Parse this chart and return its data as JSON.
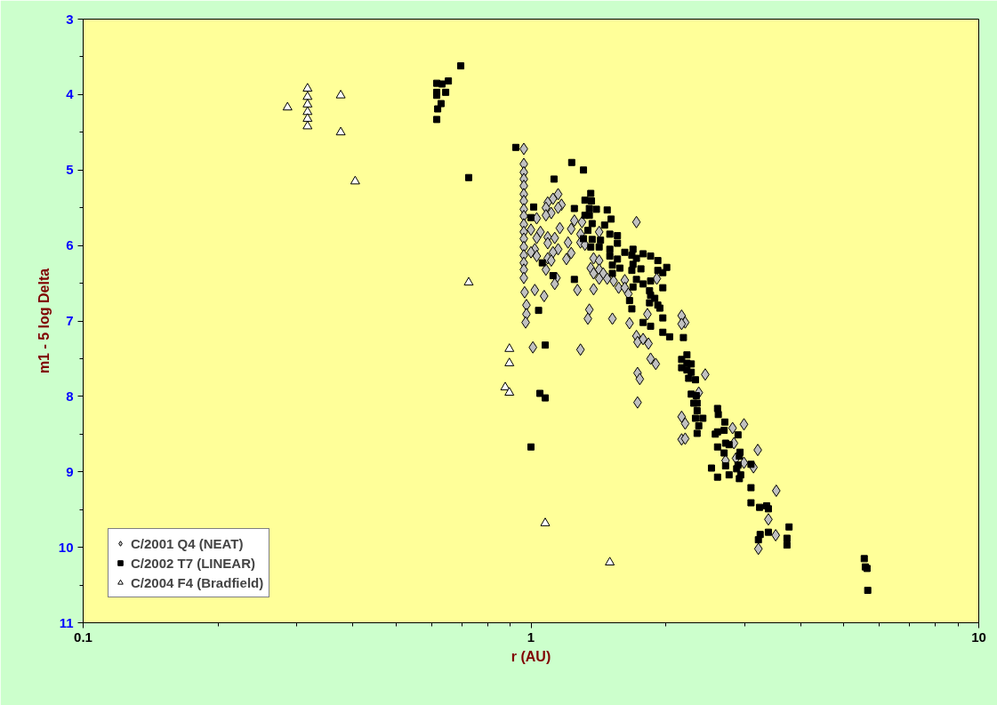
{
  "chart_data": {
    "type": "scatter",
    "xlabel": "r (AU)",
    "ylabel": "m1 - 5 log Delta",
    "log": "x",
    "grid": false,
    "legend": "bottom left",
    "xlim": [
      0.1,
      10
    ],
    "xticks": [
      0.1,
      1,
      10
    ],
    "ylim": [
      11,
      3
    ],
    "yticks": [
      3,
      4,
      5,
      6,
      7,
      8,
      9,
      10,
      11
    ],
    "series": [
      {
        "name": "C/2001 Q4 (NEAT)",
        "color": "#c0c0c0",
        "marker": "diamond",
        "x": [
          0.964,
          0.964,
          0.964,
          0.964,
          0.964,
          0.964,
          0.964,
          0.964,
          0.964,
          0.964,
          0.964,
          0.964,
          0.964,
          0.964,
          0.964,
          0.964,
          0.964,
          0.968,
          0.977,
          0.977,
          0.973,
          1.01,
          1.02,
          1.07,
          1.15,
          1.12,
          1.09,
          1.17,
          1.08,
          1.15,
          1.11,
          1.08,
          1.03,
          1.0,
          1.05,
          1.03,
          1.09,
          1.13,
          1.16,
          1.09,
          1.15,
          1.12,
          1.02,
          1.0,
          1.03,
          1.09,
          1.11,
          1.08,
          1.14,
          1.13,
          1.25,
          1.3,
          1.23,
          1.29,
          1.21,
          1.29,
          1.32,
          1.42,
          1.23,
          1.2,
          1.38,
          1.42,
          1.36,
          1.38,
          1.42,
          1.45,
          1.42,
          1.48,
          1.53,
          1.62,
          1.57,
          1.62,
          1.65,
          1.27,
          1.38,
          1.35,
          1.34,
          1.52,
          1.29,
          1.66,
          1.72,
          1.82,
          1.72,
          1.73,
          1.78,
          1.83,
          1.85,
          1.9,
          1.73,
          1.75,
          1.73,
          1.91,
          2.17,
          2.21,
          2.17,
          2.45,
          2.37,
          2.17,
          2.21,
          2.17,
          2.21,
          2.82,
          2.99,
          2.84,
          2.72,
          2.87,
          2.99,
          3.14,
          3.21,
          3.53,
          3.39,
          3.52,
          3.22
        ],
        "values": [
          4.72,
          4.92,
          5.03,
          5.12,
          5.21,
          5.32,
          5.41,
          5.52,
          5.61,
          5.72,
          5.82,
          5.91,
          6.02,
          6.13,
          6.23,
          6.32,
          6.43,
          6.62,
          6.79,
          6.91,
          7.02,
          7.35,
          6.59,
          6.67,
          5.32,
          5.38,
          5.43,
          5.46,
          5.5,
          5.5,
          5.57,
          5.6,
          5.64,
          5.79,
          5.82,
          5.9,
          5.89,
          5.9,
          5.77,
          5.97,
          6.05,
          6.09,
          6.05,
          6.09,
          6.14,
          6.17,
          6.2,
          6.32,
          6.43,
          6.51,
          5.67,
          5.69,
          5.78,
          5.85,
          5.96,
          5.96,
          5.99,
          5.82,
          6.1,
          6.18,
          6.17,
          6.2,
          6.3,
          6.37,
          6.32,
          6.37,
          6.44,
          6.44,
          6.47,
          6.46,
          6.56,
          6.56,
          6.64,
          6.59,
          6.58,
          6.85,
          6.97,
          6.97,
          7.38,
          7.03,
          5.69,
          6.91,
          7.2,
          7.28,
          7.24,
          7.3,
          7.5,
          7.57,
          7.69,
          7.77,
          8.08,
          6.44,
          6.93,
          7.02,
          7.04,
          7.71,
          7.95,
          8.27,
          8.36,
          8.57,
          8.56,
          8.42,
          8.37,
          8.62,
          8.85,
          8.82,
          8.88,
          8.94,
          8.71,
          9.25,
          9.63,
          9.84,
          10.02
        ]
      },
      {
        "name": "C/2002 T7 (LINEAR)",
        "color": "#000000",
        "marker": "square",
        "x": [
          0.697,
          0.616,
          0.633,
          0.654,
          0.616,
          0.616,
          0.645,
          0.63,
          0.619,
          0.616,
          0.726,
          0.925,
          1.233,
          1.31,
          1.126,
          1.36,
          1.32,
          1.365,
          1.014,
          1.25,
          1.35,
          1.4,
          1.48,
          1.0,
          1.32,
          1.35,
          1.51,
          1.37,
          1.46,
          1.34,
          1.5,
          1.56,
          1.31,
          1.37,
          1.43,
          1.56,
          1.36,
          1.42,
          1.5,
          1.69,
          1.62,
          1.78,
          1.5,
          1.68,
          1.85,
          1.92,
          1.06,
          1.56,
          1.72,
          2.01,
          1.52,
          1.58,
          1.69,
          1.76,
          1.68,
          1.92,
          1.97,
          1.52,
          1.12,
          1.72,
          1.85,
          1.25,
          1.69,
          1.78,
          1.97,
          1.84,
          1.85,
          1.89,
          1.66,
          1.84,
          1.92,
          1.94,
          1.68,
          1.04,
          1.97,
          1.78,
          1.85,
          1.97,
          2.04,
          1.076,
          1.047,
          1.076,
          1.0,
          2.19,
          2.23,
          2.17,
          2.17,
          2.23,
          2.28,
          2.23,
          2.28,
          2.25,
          2.33,
          2.28,
          2.34,
          2.31,
          2.35,
          2.35,
          2.33,
          2.42,
          2.37,
          2.35,
          2.61,
          2.62,
          2.71,
          2.7,
          2.61,
          2.58,
          2.9,
          2.72,
          2.77,
          2.61,
          2.7,
          2.93,
          2.92,
          2.72,
          2.9,
          2.88,
          3.1,
          2.53,
          2.61,
          2.77,
          2.94,
          2.92,
          3.1,
          3.1,
          3.24,
          3.36,
          3.39,
          3.77,
          3.39,
          3.25,
          3.22,
          3.73,
          3.73,
          5.55,
          5.58,
          5.63,
          5.65
        ],
        "values": [
          3.62,
          3.85,
          3.86,
          3.82,
          3.97,
          4.01,
          3.97,
          4.12,
          4.19,
          4.33,
          5.1,
          4.7,
          4.9,
          5.0,
          5.12,
          5.31,
          5.4,
          5.41,
          5.49,
          5.51,
          5.51,
          5.52,
          5.53,
          5.63,
          5.6,
          5.6,
          5.65,
          5.71,
          5.73,
          5.8,
          5.85,
          5.87,
          5.91,
          5.92,
          5.93,
          5.97,
          6.02,
          6.02,
          6.05,
          6.05,
          6.09,
          6.11,
          6.14,
          6.13,
          6.14,
          6.2,
          6.23,
          6.18,
          6.17,
          6.29,
          6.26,
          6.3,
          6.25,
          6.31,
          6.33,
          6.33,
          6.36,
          6.37,
          6.4,
          6.45,
          6.47,
          6.45,
          6.55,
          6.51,
          6.56,
          6.6,
          6.66,
          6.7,
          6.73,
          6.76,
          6.79,
          6.83,
          6.84,
          6.86,
          6.96,
          7.02,
          7.07,
          7.15,
          7.21,
          7.32,
          7.96,
          8.02,
          8.67,
          7.22,
          7.45,
          7.51,
          7.62,
          7.56,
          7.57,
          7.65,
          7.68,
          7.76,
          7.78,
          7.97,
          7.99,
          8.09,
          8.09,
          8.19,
          8.29,
          8.29,
          8.39,
          8.49,
          8.16,
          8.24,
          8.34,
          8.45,
          8.47,
          8.5,
          8.51,
          8.62,
          8.64,
          8.67,
          8.75,
          8.74,
          8.79,
          8.92,
          8.91,
          8.96,
          8.9,
          8.95,
          9.07,
          9.04,
          9.04,
          9.09,
          9.21,
          9.41,
          9.47,
          9.45,
          9.49,
          9.73,
          9.8,
          9.83,
          9.9,
          9.88,
          9.97,
          10.15,
          10.26,
          10.28,
          10.57
        ]
      },
      {
        "name": "C/2004 F4 (Bradfield)",
        "color": "#ffffff",
        "marker": "triangle",
        "x": [
          0.286,
          0.317,
          0.317,
          0.317,
          0.317,
          0.317,
          0.317,
          0.376,
          0.376,
          0.405,
          0.726,
          0.895,
          0.895,
          0.876,
          0.895,
          1.076,
          1.5
        ],
        "values": [
          4.17,
          3.92,
          4.03,
          4.13,
          4.23,
          4.32,
          4.42,
          4.01,
          4.5,
          5.15,
          6.49,
          7.37,
          7.56,
          7.88,
          7.95,
          9.68,
          10.2
        ]
      }
    ]
  }
}
